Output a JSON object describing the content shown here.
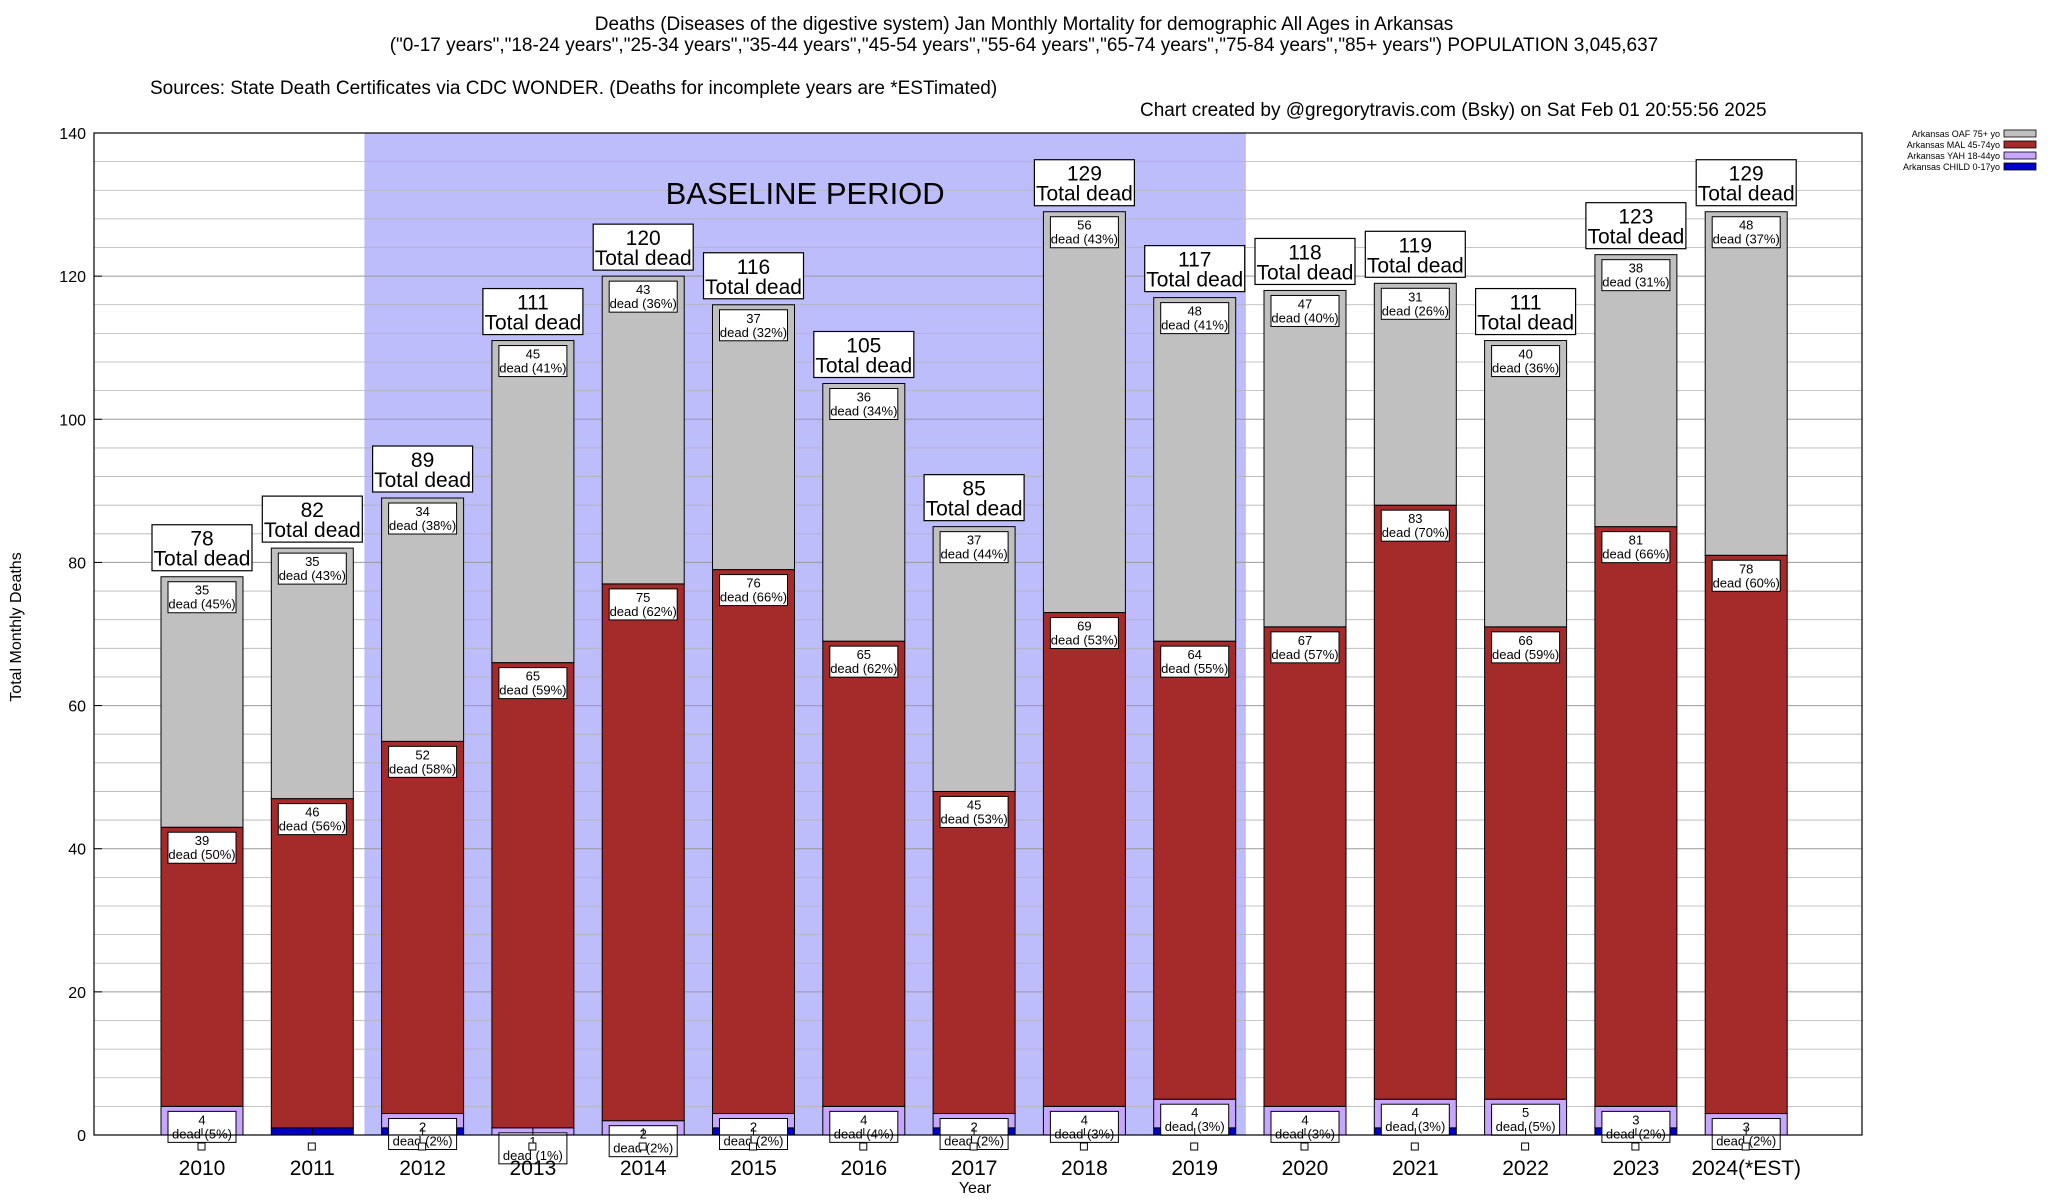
{
  "chart_data": {
    "type": "bar",
    "stacked": true,
    "title": "Deaths (Diseases of the digestive system) Jan Monthly Mortality for demographic All Ages in Arkansas",
    "subtitle": "(\"0-17 years\",\"18-24 years\",\"25-34 years\",\"35-44 years\",\"45-54 years\",\"55-64 years\",\"65-74 years\",\"75-84 years\",\"85+ years\") POPULATION 3,045,637",
    "source": "Sources: State Death Certificates via CDC WONDER. (Deaths for incomplete years are *ESTimated)",
    "credit": "Chart created by @gregorytravis.com (Bsky) on Sat Feb 01 20:55:56 2025",
    "xlabel": "Year",
    "ylabel": "Total Monthly Deaths",
    "ylim": [
      0,
      140
    ],
    "yticks": [
      0,
      20,
      40,
      60,
      80,
      100,
      120,
      140
    ],
    "grid": true,
    "legend_position": "top-right",
    "baseline_label": "BASELINE PERIOD",
    "baseline_range": [
      "2012",
      "2019"
    ],
    "total_suffix": "Total dead",
    "segment_word": "dead",
    "categories": [
      "2010",
      "2011",
      "2012",
      "2013",
      "2014",
      "2015",
      "2016",
      "2017",
      "2018",
      "2019",
      "2020",
      "2021",
      "2022",
      "2023",
      "2024(*EST)"
    ],
    "totals": [
      78,
      82,
      89,
      111,
      120,
      116,
      105,
      85,
      129,
      117,
      118,
      119,
      111,
      123,
      129
    ],
    "series": [
      {
        "name": "Arkansas CHILD 0-17yo",
        "color": "#0000cc",
        "values": [
          0,
          1,
          1,
          0,
          0,
          1,
          0,
          1,
          0,
          1,
          0,
          1,
          0,
          1,
          0
        ],
        "labels": []
      },
      {
        "name": "Arkansas YAH 18-44yo",
        "color": "#c6a6ff",
        "values": [
          4,
          0,
          2,
          1,
          2,
          2,
          4,
          2,
          4,
          4,
          4,
          4,
          5,
          3,
          3
        ],
        "labels": [
          "4|dead (5%)",
          "",
          "2|dead (2%)",
          "1|dead (1%)",
          "2|dead (2%)",
          "2|dead (2%)",
          "4|dead (4%)",
          "2|dead (2%)",
          "4|dead (3%)",
          "4|dead (3%)",
          "4|dead (3%)",
          "4|dead (3%)",
          "5|dead (5%)",
          "3|dead (2%)",
          "3|dead (2%)"
        ]
      },
      {
        "name": "Arkansas MAL 45-74yo",
        "color": "#a52a2a",
        "values": [
          39,
          46,
          52,
          65,
          75,
          76,
          65,
          45,
          69,
          64,
          67,
          83,
          66,
          81,
          78
        ],
        "labels": [
          "39|dead (50%)",
          "46|dead (56%)",
          "52|dead (58%)",
          "65|dead (59%)",
          "75|dead (62%)",
          "76|dead (66%)",
          "65|dead (62%)",
          "45|dead (53%)",
          "69|dead (53%)",
          "64|dead (55%)",
          "67|dead (57%)",
          "83|dead (70%)",
          "66|dead (59%)",
          "81|dead (66%)",
          "78|dead (60%)"
        ]
      },
      {
        "name": "Arkansas OAF 75+ yo",
        "color": "#c0c0c0",
        "values": [
          35,
          35,
          34,
          45,
          43,
          37,
          36,
          37,
          56,
          48,
          47,
          31,
          40,
          38,
          48
        ],
        "labels": [
          "35|dead (45%)",
          "35|dead (43%)",
          "34|dead (38%)",
          "45|dead (41%)",
          "43|dead (36%)",
          "37|dead (32%)",
          "36|dead (34%)",
          "37|dead (44%)",
          "56|dead (43%)",
          "48|dead (41%)",
          "47|dead (40%)",
          "31|dead (26%)",
          "40|dead (36%)",
          "38|dead (31%)",
          "48|dead (37%)"
        ]
      }
    ]
  }
}
